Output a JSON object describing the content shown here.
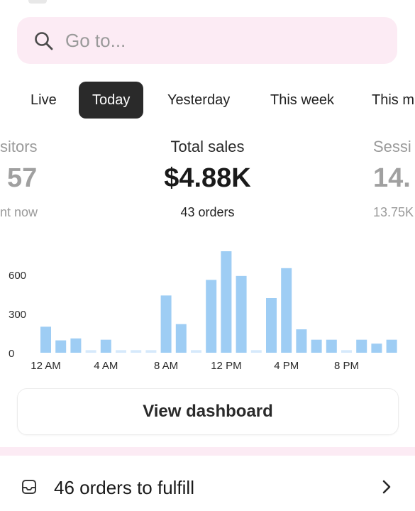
{
  "search": {
    "placeholder": "Go to..."
  },
  "tabs": [
    {
      "label": "Live",
      "active": false
    },
    {
      "label": "Today",
      "active": true
    },
    {
      "label": "Yesterday",
      "active": false
    },
    {
      "label": "This week",
      "active": false
    },
    {
      "label": "This m",
      "active": false
    }
  ],
  "metrics": {
    "left": {
      "label": "sitors",
      "value": "57",
      "sub": "nt now"
    },
    "main": {
      "label": "Total sales",
      "value": "$4.88K",
      "sub": "43 orders"
    },
    "right": {
      "label": "Sessi",
      "value": "14.",
      "sub": "13.75K"
    }
  },
  "chart_data": {
    "type": "bar",
    "x_ticks": [
      "12 AM",
      "4 AM",
      "8 AM",
      "12 PM",
      "4 PM",
      "8 PM"
    ],
    "y_ticks": [
      "0",
      "300",
      "600"
    ],
    "ylim": [
      0,
      780
    ],
    "values": [
      200,
      95,
      110,
      20,
      100,
      20,
      20,
      20,
      440,
      220,
      20,
      560,
      780,
      590,
      20,
      420,
      650,
      180,
      100,
      100,
      20,
      100,
      70,
      100
    ],
    "bar_color": "#9ecdf4",
    "baseline_color": "#d6e9fb"
  },
  "dashboard_button": {
    "label": "View dashboard"
  },
  "fulfill": {
    "text": "46 orders to fulfill"
  },
  "icons": {
    "search": "search-icon",
    "orders": "inbox-icon",
    "chevron": "chevron-right-icon"
  }
}
